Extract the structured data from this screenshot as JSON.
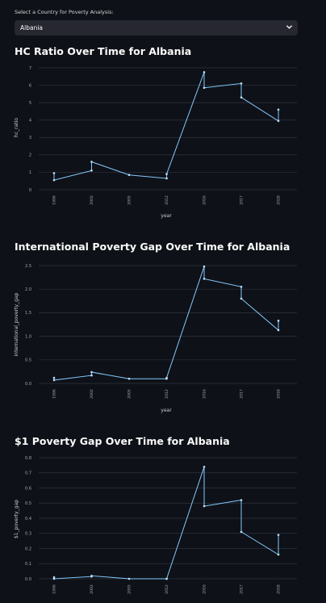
{
  "selector": {
    "label": "Select a Country for Poverty Analysis:",
    "value": "Albania",
    "icon": "chevron-down-icon"
  },
  "colors": {
    "background": "#0e1117",
    "line": "#83c9ff",
    "select_bg": "#262730"
  },
  "chart_data": [
    {
      "type": "line",
      "title": "HC Ratio Over Time for Albania",
      "xlabel": "year",
      "ylabel": "hc_ratio",
      "ylim": [
        0,
        7
      ],
      "yticks": [
        "0",
        "1",
        "2",
        "3",
        "4",
        "5",
        "6",
        "7"
      ],
      "categories": [
        "1996",
        "2002",
        "2005",
        "2012",
        "2016",
        "2017",
        "2018"
      ],
      "grid": true,
      "points": [
        {
          "x": "1996",
          "y": 0.95
        },
        {
          "x": "1996",
          "y": 0.55
        },
        {
          "x": "2002",
          "y": 1.1
        },
        {
          "x": "2002",
          "y": 1.6
        },
        {
          "x": "2005",
          "y": 0.85
        },
        {
          "x": "2012",
          "y": 0.65
        },
        {
          "x": "2012",
          "y": 0.9
        },
        {
          "x": "2016",
          "y": 6.75
        },
        {
          "x": "2016",
          "y": 5.85
        },
        {
          "x": "2017",
          "y": 6.1
        },
        {
          "x": "2017",
          "y": 5.3
        },
        {
          "x": "2018",
          "y": 3.95
        },
        {
          "x": "2018",
          "y": 4.6
        }
      ]
    },
    {
      "type": "line",
      "title": "International Poverty Gap Over Time for Albania",
      "xlabel": "year",
      "ylabel": "international_poverty_gap",
      "ylim": [
        0,
        2.5
      ],
      "yticks": [
        "0.0",
        "0.5",
        "1.0",
        "1.5",
        "2.0",
        "2.5"
      ],
      "categories": [
        "1996",
        "2002",
        "2005",
        "2012",
        "2016",
        "2017",
        "2018"
      ],
      "grid": true,
      "points": [
        {
          "x": "1996",
          "y": 0.12
        },
        {
          "x": "1996",
          "y": 0.07
        },
        {
          "x": "2002",
          "y": 0.17
        },
        {
          "x": "2002",
          "y": 0.24
        },
        {
          "x": "2005",
          "y": 0.1
        },
        {
          "x": "2012",
          "y": 0.1
        },
        {
          "x": "2012",
          "y": 0.12
        },
        {
          "x": "2016",
          "y": 2.48
        },
        {
          "x": "2016",
          "y": 2.22
        },
        {
          "x": "2017",
          "y": 2.05
        },
        {
          "x": "2017",
          "y": 1.8
        },
        {
          "x": "2018",
          "y": 1.13
        },
        {
          "x": "2018",
          "y": 1.33
        }
      ]
    },
    {
      "type": "line",
      "title": "$1 Poverty Gap Over Time for Albania",
      "xlabel": "",
      "ylabel": "$1_poverty_gap",
      "ylim": [
        0,
        0.8
      ],
      "yticks": [
        "0.0",
        "0.1",
        "0.2",
        "0.3",
        "0.4",
        "0.5",
        "0.6",
        "0.7",
        "0.8"
      ],
      "categories": [
        "1996",
        "2002",
        "2005",
        "2012",
        "2016",
        "2017",
        "2018"
      ],
      "grid": true,
      "points": [
        {
          "x": "1996",
          "y": 0.01
        },
        {
          "x": "1996",
          "y": 0.0
        },
        {
          "x": "2002",
          "y": 0.015
        },
        {
          "x": "2002",
          "y": 0.02
        },
        {
          "x": "2005",
          "y": 0.0
        },
        {
          "x": "2012",
          "y": 0.0
        },
        {
          "x": "2012",
          "y": 0.0
        },
        {
          "x": "2016",
          "y": 0.74
        },
        {
          "x": "2016",
          "y": 0.48
        },
        {
          "x": "2017",
          "y": 0.52
        },
        {
          "x": "2017",
          "y": 0.31
        },
        {
          "x": "2018",
          "y": 0.16
        },
        {
          "x": "2018",
          "y": 0.29
        }
      ]
    }
  ]
}
